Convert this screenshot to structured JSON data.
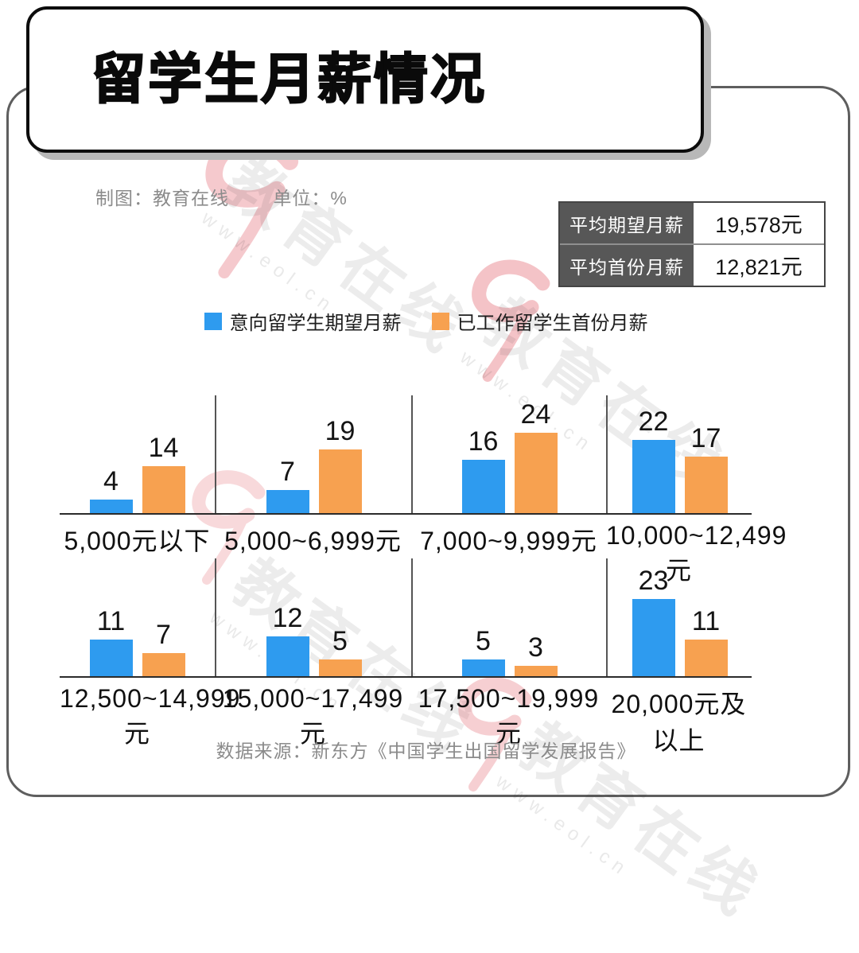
{
  "title": "留学生月薪情况",
  "meta": {
    "credit": "制图：教育在线",
    "unit": "单位：%"
  },
  "summary_table": {
    "rows": [
      {
        "label": "平均期望月薪",
        "value": "19,578元"
      },
      {
        "label": "平均首份月薪",
        "value": "12,821元"
      }
    ]
  },
  "legend": [
    {
      "label": "意向留学生期望月薪",
      "color": "#2e9bef"
    },
    {
      "label": "已工作留学生首份月薪",
      "color": "#f7a150"
    }
  ],
  "chart_data": {
    "type": "bar",
    "title": "留学生月薪情况",
    "unit": "%",
    "categories": [
      "5,000元以下",
      "5,000~6,999元",
      "7,000~9,999元",
      "10,000~12,499元",
      "12,500~14,999元",
      "15,000~17,499元",
      "17,500~19,999元",
      "20,000元及以上"
    ],
    "series": [
      {
        "name": "意向留学生期望月薪",
        "color": "#2e9bef",
        "values": [
          4,
          7,
          16,
          22,
          11,
          12,
          5,
          23
        ]
      },
      {
        "name": "已工作留学生首份月薪",
        "color": "#f7a150",
        "values": [
          14,
          19,
          24,
          17,
          7,
          5,
          3,
          11
        ]
      }
    ],
    "layout": "two rows of four category groups, value labels above bars, baseline only, no y-axis",
    "ylim": [
      0,
      25
    ],
    "grid": false,
    "legend_position": "top-center"
  },
  "footer": {
    "source": "数据来源：新东方《中国学生出国留学发展报告》"
  },
  "watermark": {
    "text": "教育在线",
    "subtext": "www.eol.cn",
    "logo_color": "#e05560"
  }
}
